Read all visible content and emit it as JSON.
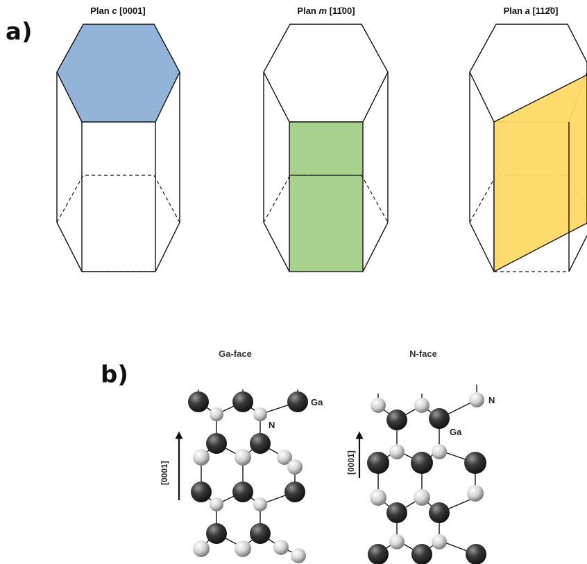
{
  "panel_a": {
    "label": "a)",
    "plans": [
      {
        "title_prefix": "Plan ",
        "title_var": "c",
        "title_index": "[0001]",
        "highlight": "top-hexagon",
        "color": "#93b4d8"
      },
      {
        "title_prefix": "Plan ",
        "title_var": "m",
        "title_index": "[11̄00]",
        "highlight": "front-rectangle",
        "color": "#a8d18e"
      },
      {
        "title_prefix": "Plan ",
        "title_var": "a",
        "title_index": "[112̄0]",
        "highlight": "diagonal-plane",
        "color": "#ffd865"
      }
    ]
  },
  "panel_b": {
    "label": "b)",
    "structures": [
      {
        "title": "Ga-face",
        "direction": "[0001]",
        "labels": {
          "dark": "Ga",
          "light": "N"
        }
      },
      {
        "title": "N-face",
        "direction": "[0001̄]",
        "labels": {
          "dark": "Ga",
          "light": "N"
        }
      }
    ],
    "atom_colors": {
      "dark": "#333333",
      "light": "#d9d9d9"
    }
  }
}
